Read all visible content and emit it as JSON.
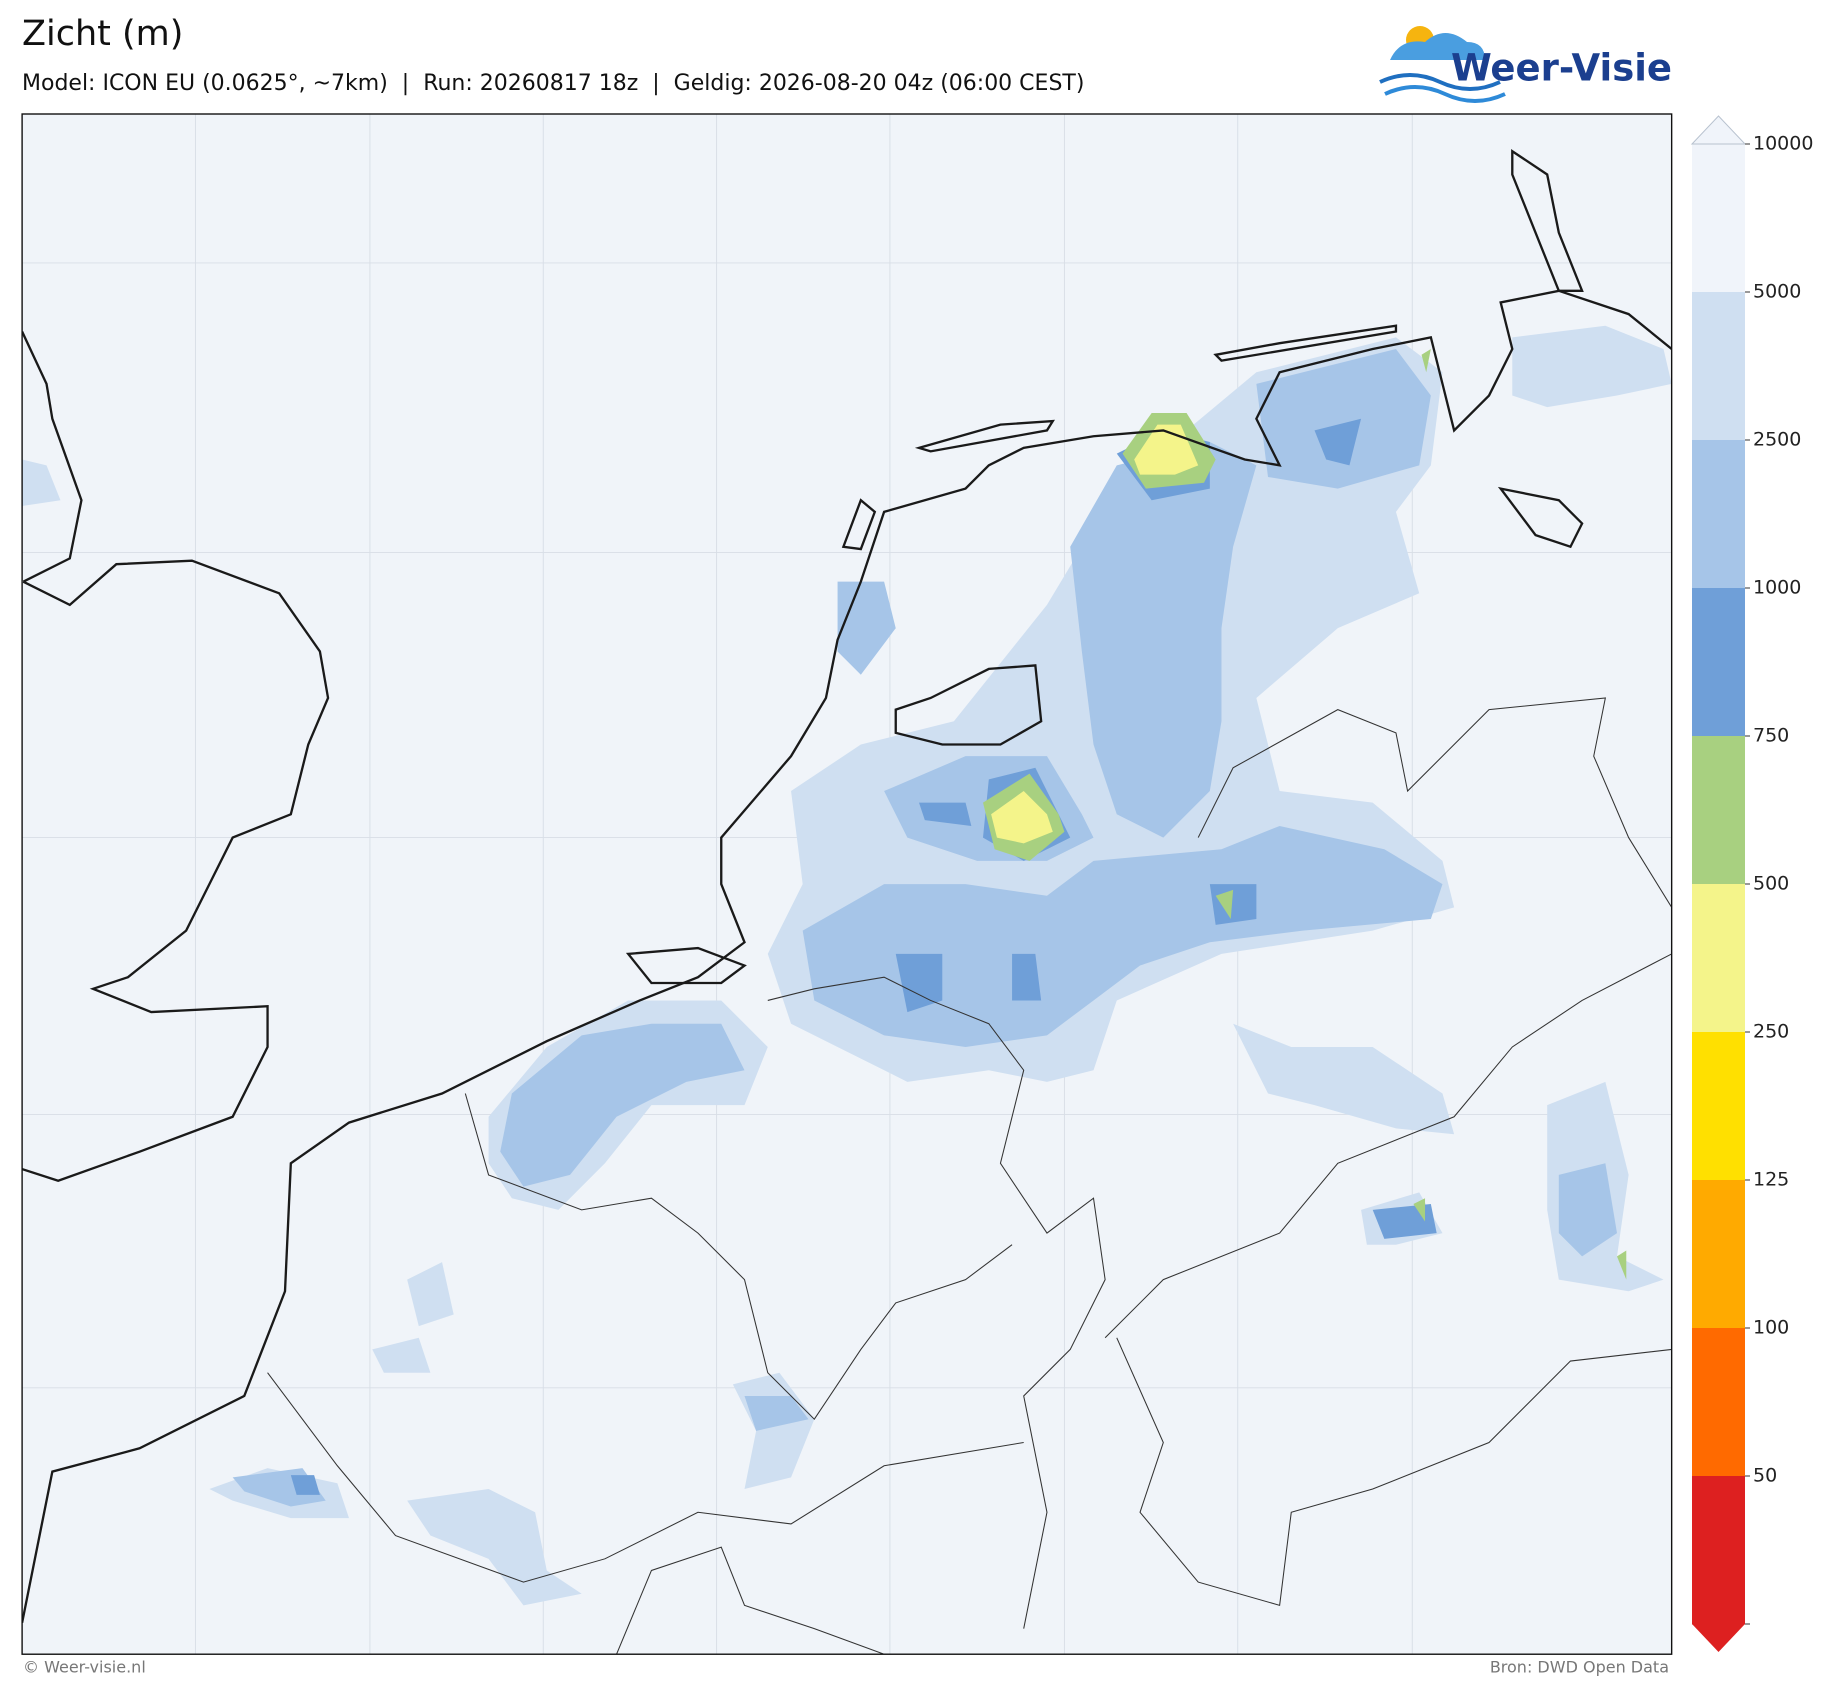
{
  "header": {
    "title": "Zicht (m)",
    "subtitle": "Model: ICON EU (0.0625°, ~7km)  |  Run: 20260817 18z  |  Geldig: 2026-08-20 04z (06:00 CEST)"
  },
  "logo": {
    "text": "Weer-Visie"
  },
  "colorbar": {
    "ticks": [
      10000,
      5000,
      2500,
      1000,
      750,
      500,
      250,
      125,
      100,
      50
    ],
    "colors": [
      "#f0f4fa",
      "#cfdff1",
      "#a6c5e8",
      "#6f9fd8",
      "#a8d080",
      "#f4f48a",
      "#ffe000",
      "#ffaa00",
      "#ff6a00",
      "#dd2020"
    ]
  },
  "footer": {
    "left": "© Weer-visie.nl",
    "right": "Bron: DWD Open Data"
  }
}
